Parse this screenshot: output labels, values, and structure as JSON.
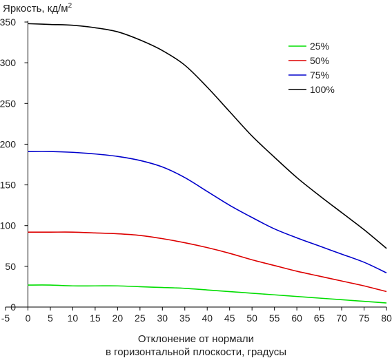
{
  "chart_data": {
    "type": "line",
    "ylabel": "Яркость, кд/м",
    "ylabel_sup": "2",
    "xlabel_line1": "Отклонение от нормали",
    "xlabel_line2": "в горизонтальной плоскости, градусы",
    "xlim": [
      -5,
      80
    ],
    "ylim": [
      0,
      350
    ],
    "xticks": [
      -5,
      0,
      5,
      10,
      15,
      20,
      25,
      30,
      35,
      40,
      45,
      50,
      55,
      60,
      65,
      70,
      75,
      80
    ],
    "yticks": [
      0,
      50,
      100,
      150,
      200,
      250,
      300,
      350
    ],
    "grid": false,
    "legend_position": "top-right",
    "x": [
      0,
      5,
      10,
      15,
      20,
      25,
      30,
      35,
      40,
      45,
      50,
      55,
      60,
      65,
      70,
      75,
      80
    ],
    "series": [
      {
        "name": "25%",
        "color": "#00dd00",
        "values": [
          27,
          27,
          26,
          26,
          26,
          25,
          24,
          23,
          21,
          19,
          17,
          15,
          13,
          11,
          9,
          7,
          5
        ]
      },
      {
        "name": "50%",
        "color": "#dd0000",
        "values": [
          92,
          92,
          92,
          91,
          90,
          88,
          84,
          79,
          73,
          66,
          58,
          51,
          44,
          38,
          32,
          26,
          19
        ]
      },
      {
        "name": "75%",
        "color": "#0000cc",
        "values": [
          191,
          191,
          190,
          188,
          185,
          180,
          172,
          159,
          142,
          125,
          110,
          96,
          85,
          75,
          65,
          55,
          42
        ]
      },
      {
        "name": "100%",
        "color": "#000000",
        "values": [
          348,
          347,
          346,
          343,
          338,
          328,
          315,
          297,
          270,
          240,
          210,
          184,
          159,
          137,
          116,
          95,
          72
        ]
      }
    ]
  }
}
